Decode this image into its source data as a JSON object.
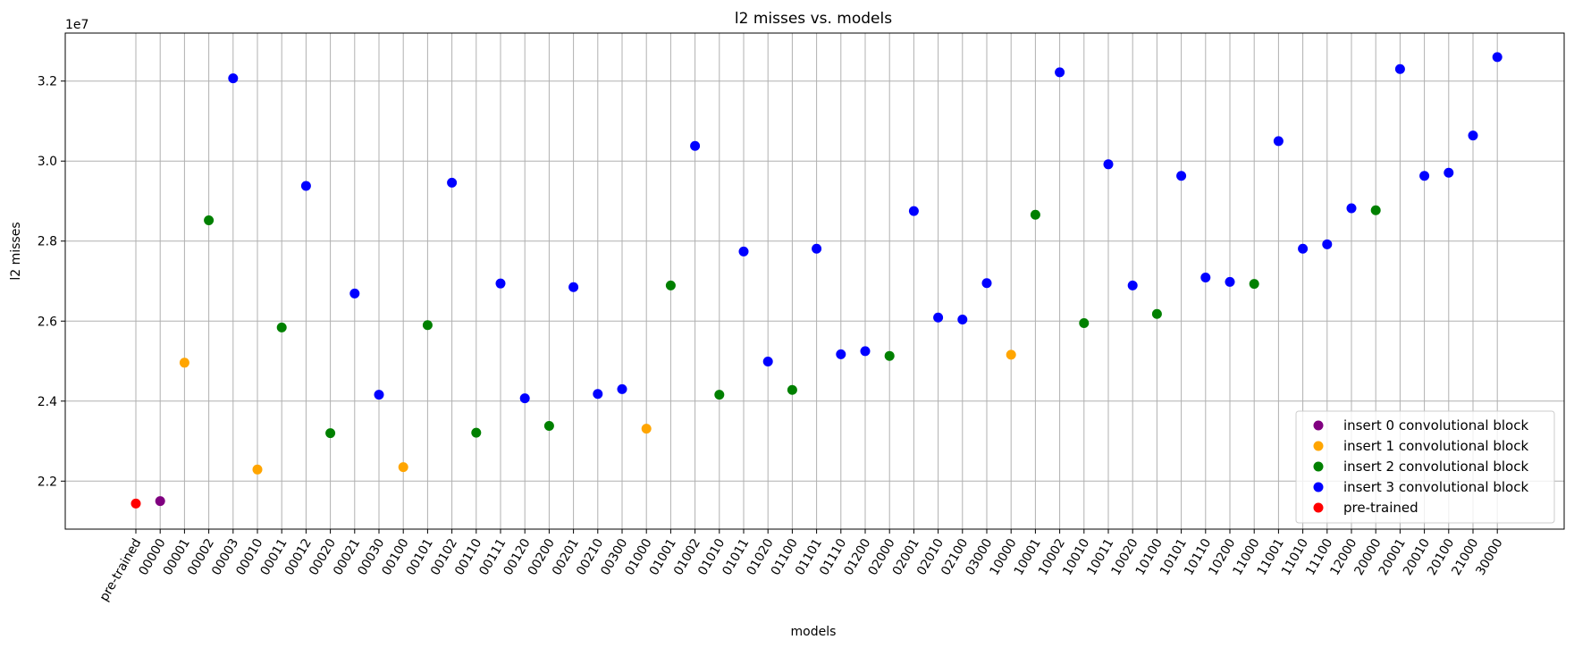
{
  "chart_data": {
    "type": "scatter",
    "title": "l2 misses vs. models",
    "xlabel": "models",
    "ylabel": "l2 misses",
    "y_offset_text": "1e7",
    "ylim": [
      20800000,
      33200000
    ],
    "yticks": [
      22000000,
      24000000,
      26000000,
      28000000,
      30000000,
      32000000
    ],
    "ytick_labels": [
      "2.2",
      "2.4",
      "2.6",
      "2.8",
      "3.0",
      "3.2"
    ],
    "grid": true,
    "legend_position": "lower-right",
    "categories": [
      "pre-trained",
      "00000",
      "00001",
      "00002",
      "00003",
      "00010",
      "00011",
      "00012",
      "00020",
      "00021",
      "00030",
      "00100",
      "00101",
      "00102",
      "00110",
      "00111",
      "00120",
      "00200",
      "00201",
      "00210",
      "00300",
      "01000",
      "01001",
      "01002",
      "01010",
      "01011",
      "01020",
      "01100",
      "01101",
      "01110",
      "01200",
      "02000",
      "02001",
      "02010",
      "02100",
      "03000",
      "10000",
      "10001",
      "10002",
      "10010",
      "10011",
      "10020",
      "10100",
      "10101",
      "10110",
      "10200",
      "11000",
      "11001",
      "11010",
      "11100",
      "12000",
      "20000",
      "20001",
      "20010",
      "20100",
      "21000",
      "30000"
    ],
    "series": [
      {
        "name": "insert 0 convolutional block",
        "color": "#800080",
        "points": [
          {
            "x": "00000",
            "y": 21500000
          }
        ]
      },
      {
        "name": "insert 1 convolutional block",
        "color": "#ffa500",
        "points": [
          {
            "x": "00001",
            "y": 24960000
          },
          {
            "x": "00010",
            "y": 22290000
          },
          {
            "x": "00100",
            "y": 22350000
          },
          {
            "x": "01000",
            "y": 23310000
          },
          {
            "x": "10000",
            "y": 25160000
          }
        ]
      },
      {
        "name": "insert 2 convolutional block",
        "color": "#008000",
        "points": [
          {
            "x": "00002",
            "y": 28520000
          },
          {
            "x": "00011",
            "y": 25840000
          },
          {
            "x": "00020",
            "y": 23200000
          },
          {
            "x": "00101",
            "y": 25900000
          },
          {
            "x": "00110",
            "y": 23210000
          },
          {
            "x": "00200",
            "y": 23380000
          },
          {
            "x": "01001",
            "y": 26890000
          },
          {
            "x": "01010",
            "y": 24160000
          },
          {
            "x": "01100",
            "y": 24280000
          },
          {
            "x": "02000",
            "y": 25130000
          },
          {
            "x": "10001",
            "y": 28660000
          },
          {
            "x": "10010",
            "y": 25950000
          },
          {
            "x": "10100",
            "y": 26180000
          },
          {
            "x": "11000",
            "y": 26930000
          },
          {
            "x": "20000",
            "y": 28770000
          }
        ]
      },
      {
        "name": "insert 3 convolutional block",
        "color": "#0000ff",
        "points": [
          {
            "x": "00003",
            "y": 32070000
          },
          {
            "x": "00012",
            "y": 29380000
          },
          {
            "x": "00021",
            "y": 26690000
          },
          {
            "x": "00030",
            "y": 24160000
          },
          {
            "x": "00102",
            "y": 29460000
          },
          {
            "x": "00111",
            "y": 26940000
          },
          {
            "x": "00120",
            "y": 24070000
          },
          {
            "x": "00201",
            "y": 26850000
          },
          {
            "x": "00210",
            "y": 24180000
          },
          {
            "x": "00300",
            "y": 24300000
          },
          {
            "x": "01002",
            "y": 30380000
          },
          {
            "x": "01011",
            "y": 27740000
          },
          {
            "x": "01020",
            "y": 24990000
          },
          {
            "x": "01101",
            "y": 27810000
          },
          {
            "x": "01110",
            "y": 25170000
          },
          {
            "x": "01200",
            "y": 25250000
          },
          {
            "x": "02001",
            "y": 28750000
          },
          {
            "x": "02010",
            "y": 26090000
          },
          {
            "x": "02100",
            "y": 26040000
          },
          {
            "x": "03000",
            "y": 26950000
          },
          {
            "x": "10002",
            "y": 32220000
          },
          {
            "x": "10011",
            "y": 29920000
          },
          {
            "x": "10020",
            "y": 26890000
          },
          {
            "x": "10101",
            "y": 29630000
          },
          {
            "x": "10110",
            "y": 27090000
          },
          {
            "x": "10200",
            "y": 26980000
          },
          {
            "x": "11001",
            "y": 30500000
          },
          {
            "x": "11010",
            "y": 27810000
          },
          {
            "x": "11100",
            "y": 27920000
          },
          {
            "x": "12000",
            "y": 28820000
          },
          {
            "x": "20001",
            "y": 32300000
          },
          {
            "x": "20010",
            "y": 29630000
          },
          {
            "x": "20100",
            "y": 29710000
          },
          {
            "x": "21000",
            "y": 30640000
          },
          {
            "x": "30000",
            "y": 32600000
          }
        ]
      },
      {
        "name": "pre-trained",
        "color": "#ff0000",
        "points": [
          {
            "x": "pre-trained",
            "y": 21440000
          }
        ]
      }
    ]
  }
}
